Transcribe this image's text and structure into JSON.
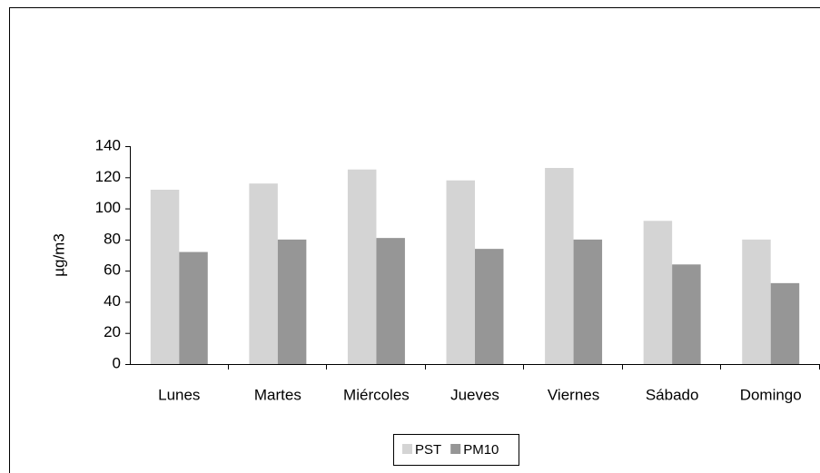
{
  "chart_data": {
    "type": "bar",
    "y_label": "µg/m3",
    "categories": [
      "Lunes",
      "Martes",
      "Miércoles",
      "Jueves",
      "Viernes",
      "Sábado",
      "Domingo"
    ],
    "series": [
      {
        "name": "PST",
        "color": "#d4d4d4",
        "values": [
          112,
          116,
          125,
          118,
          126,
          92,
          80
        ]
      },
      {
        "name": "PM10",
        "color": "#969696",
        "values": [
          72,
          80,
          81,
          74,
          80,
          64,
          52
        ]
      }
    ],
    "ylim": [
      0,
      140
    ],
    "yticks": [
      0,
      20,
      40,
      60,
      80,
      100,
      120,
      140
    ],
    "grid": false,
    "legend": "bottom"
  }
}
